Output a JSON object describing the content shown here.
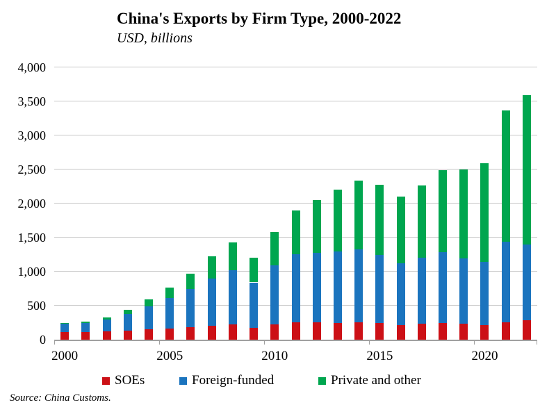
{
  "source": {
    "text": "Source:  China Customs."
  },
  "chart_data": {
    "type": "bar",
    "stacked": true,
    "title": "China's Exports by Firm Type, 2000-2022",
    "subtitle": "USD, billions",
    "categories": [
      2000,
      2001,
      2002,
      2003,
      2004,
      2005,
      2006,
      2007,
      2008,
      2009,
      2010,
      2011,
      2012,
      2013,
      2014,
      2015,
      2016,
      2017,
      2018,
      2019,
      2020,
      2021,
      2022
    ],
    "series": [
      {
        "name": "SOEs",
        "color": "#cc1016",
        "values": [
          116,
          113,
          123,
          137,
          153,
          168,
          184,
          203,
          226,
          170,
          228,
          257,
          254,
          250,
          255,
          245,
          215,
          230,
          245,
          230,
          211,
          260,
          290
        ]
      },
      {
        "name": "Foreign-funded",
        "color": "#1b74be",
        "values": [
          119,
          133,
          170,
          240,
          339,
          444,
          564,
          696,
          791,
          672,
          862,
          995,
          1023,
          1044,
          1075,
          1005,
          912,
          976,
          1036,
          964,
          934,
          1176,
          1107
        ]
      },
      {
        "name": "Private and other",
        "color": "#00a64f",
        "values": [
          14,
          20,
          33,
          61,
          101,
          150,
          221,
          322,
          414,
          360,
          488,
          646,
          772,
          915,
          1012,
          1024,
          971,
          1057,
          1206,
          1306,
          1446,
          1928,
          2197
        ]
      }
    ],
    "totals": [
      249,
      266,
      326,
      438,
      593,
      762,
      969,
      1221,
      1431,
      1202,
      1578,
      1898,
      2049,
      2209,
      2342,
      2274,
      2098,
      2263,
      2487,
      2500,
      2591,
      3364,
      3594
    ],
    "ylim": [
      0,
      4000
    ],
    "ytick_interval": 500,
    "ytick_labels": [
      "0",
      "500",
      "1,000",
      "1,500",
      "2,000",
      "2,500",
      "3,000",
      "3,500",
      "4,000"
    ],
    "xtick_labels": [
      "2000",
      "2005",
      "2010",
      "2015",
      "2020"
    ],
    "xtick_indices": [
      0,
      5,
      10,
      15,
      20
    ],
    "grid": "horizontal",
    "gridline_color": "#c6c6c6",
    "axis_color": "#a0a0a0",
    "legend_position": "bottom"
  }
}
